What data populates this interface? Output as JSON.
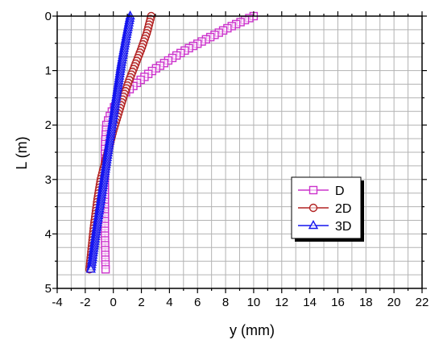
{
  "chart_data": {
    "type": "line",
    "xlabel": "y (mm)",
    "ylabel": "L (m)",
    "xlim": [
      -4,
      22
    ],
    "ylim": [
      0,
      5
    ],
    "y_inverted": true,
    "x_axis_position": "top-bottom",
    "xticks": [
      "-4",
      "-2",
      "0",
      "2",
      "4",
      "6",
      "8",
      "10",
      "12",
      "14",
      "16",
      "18",
      "20",
      "22"
    ],
    "yticks": [
      "0",
      "1",
      "2",
      "3",
      "4",
      "5"
    ],
    "grid": true,
    "legend_position": "lower-right",
    "series": [
      {
        "name": "D",
        "color": "#cc33cc",
        "marker": "square",
        "x": [
          10.0,
          8.3,
          6.8,
          5.3,
          4.0,
          2.8,
          1.8,
          0.9,
          0.2,
          -0.2,
          -0.5,
          -0.6,
          -0.6,
          -0.6,
          -0.6,
          -0.55
        ],
        "y": [
          0.0,
          0.2,
          0.4,
          0.6,
          0.8,
          1.0,
          1.2,
          1.4,
          1.6,
          1.8,
          2.0,
          2.4,
          2.8,
          3.4,
          4.0,
          4.65
        ]
      },
      {
        "name": "2D",
        "color": "#b22222",
        "marker": "circle",
        "x": [
          2.7,
          2.4,
          2.0,
          1.55,
          1.1,
          0.7,
          0.35,
          0.0,
          -0.3,
          -0.6,
          -0.9,
          -1.15,
          -1.4,
          -1.7
        ],
        "y": [
          0.0,
          0.3,
          0.6,
          0.9,
          1.2,
          1.5,
          1.8,
          2.1,
          2.4,
          2.7,
          3.0,
          3.4,
          3.9,
          4.65
        ]
      },
      {
        "name": "3D",
        "color": "#1515ee",
        "marker": "triangle",
        "x": [
          1.2,
          0.9,
          0.55,
          0.2,
          -0.15,
          -0.5,
          -0.85,
          -1.2,
          -1.6
        ],
        "y": [
          0.0,
          0.4,
          0.9,
          1.5,
          2.1,
          2.7,
          3.3,
          3.9,
          4.65
        ]
      }
    ]
  }
}
